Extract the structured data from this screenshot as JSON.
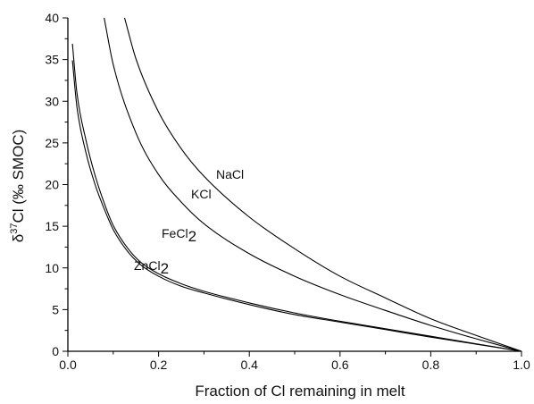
{
  "chart_data": {
    "type": "line",
    "xlabel": "Fraction of Cl remaining in melt",
    "ylabel_parts": {
      "delta": "δ",
      "sup": "37",
      "main": "Cl (‰ SMOC)"
    },
    "xlim": [
      0.0,
      1.0
    ],
    "ylim": [
      0,
      40
    ],
    "x_ticks": [
      "0.0",
      "0.2",
      "0.4",
      "0.6",
      "0.8",
      "1.0"
    ],
    "y_ticks": [
      "0",
      "5",
      "10",
      "15",
      "20",
      "25",
      "30",
      "35",
      "40"
    ],
    "grid": false,
    "legend": "none (curves labeled inline)",
    "series": [
      {
        "name": "NaCl",
        "label_main": "NaCl",
        "label_sub": "",
        "x": [
          0.125,
          0.15,
          0.2,
          0.25,
          0.3,
          0.4,
          0.5,
          0.6,
          0.7,
          0.8,
          0.9,
          1.0
        ],
        "y": [
          40,
          35.1,
          28.7,
          24.3,
          21.0,
          16.1,
          12.3,
          9.0,
          6.4,
          3.9,
          1.9,
          0
        ]
      },
      {
        "name": "KCl",
        "label_main": "KCl",
        "label_sub": "",
        "x": [
          0.08,
          0.1,
          0.15,
          0.2,
          0.25,
          0.3,
          0.4,
          0.5,
          0.6,
          0.7,
          0.8,
          0.9,
          1.0
        ],
        "y": [
          40,
          34.4,
          26.2,
          21.2,
          17.9,
          15.3,
          11.7,
          9.0,
          6.8,
          4.9,
          3.1,
          1.5,
          0
        ]
      },
      {
        "name": "FeCl2",
        "label_main": "FeCl",
        "label_sub": "2",
        "x": [
          0.01,
          0.02,
          0.04,
          0.06,
          0.08,
          0.1,
          0.13,
          0.16,
          0.2,
          0.25,
          0.3,
          0.4,
          0.5,
          0.6,
          0.7,
          0.8,
          0.9,
          1.0
        ],
        "y": [
          36.9,
          31.0,
          25.3,
          21.1,
          17.8,
          15.1,
          12.5,
          10.7,
          9.3,
          8.1,
          7.2,
          5.8,
          4.6,
          3.6,
          2.7,
          1.8,
          0.9,
          0
        ]
      },
      {
        "name": "ZnCl2",
        "label_main": "ZnCl",
        "label_sub": "2",
        "x": [
          0.01,
          0.02,
          0.04,
          0.06,
          0.08,
          0.1,
          0.13,
          0.16,
          0.2,
          0.25,
          0.3,
          0.4,
          0.5,
          0.6,
          0.7,
          0.8,
          0.9,
          1.0
        ],
        "y": [
          34.9,
          29.3,
          23.8,
          20.0,
          17.1,
          14.6,
          12.1,
          10.4,
          9.0,
          7.8,
          7.0,
          5.6,
          4.4,
          3.5,
          2.6,
          1.7,
          0.85,
          0
        ]
      }
    ]
  }
}
